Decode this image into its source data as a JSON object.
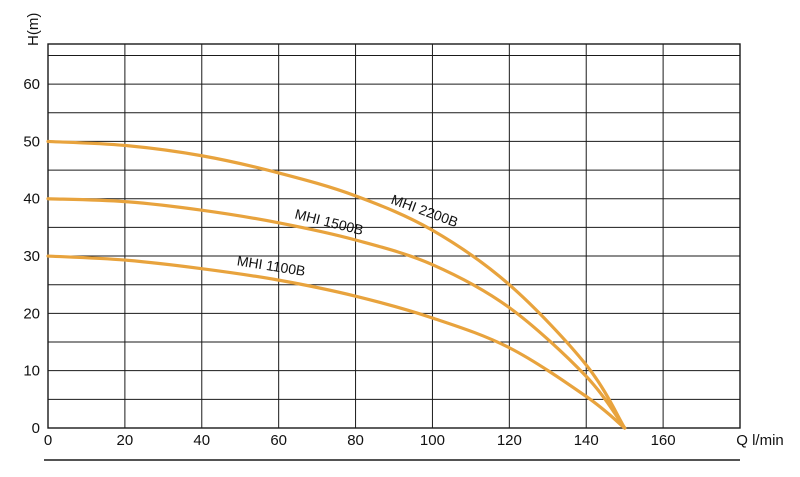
{
  "chart_data": {
    "type": "line",
    "title": "",
    "xlabel": "Q l/min",
    "ylabel": "H(m)",
    "xlim": [
      0,
      180
    ],
    "ylim": [
      0,
      67
    ],
    "x_ticks": [
      "0",
      "20",
      "40",
      "60",
      "80",
      "100",
      "120",
      "140",
      "160"
    ],
    "y_ticks": [
      "0",
      "10",
      "20",
      "30",
      "40",
      "50",
      "60"
    ],
    "grid": true,
    "line_color": "#E8A33D",
    "series": [
      {
        "name": "MHI 2200B",
        "points": [
          [
            0,
            50
          ],
          [
            20,
            49.3
          ],
          [
            40,
            47.5
          ],
          [
            60,
            44.5
          ],
          [
            80,
            40.5
          ],
          [
            100,
            34.5
          ],
          [
            120,
            25
          ],
          [
            140,
            11
          ],
          [
            150,
            0
          ]
        ]
      },
      {
        "name": "MHI 1500B",
        "points": [
          [
            0,
            40
          ],
          [
            20,
            39.5
          ],
          [
            40,
            38
          ],
          [
            60,
            35.8
          ],
          [
            80,
            32.8
          ],
          [
            100,
            28.5
          ],
          [
            120,
            21
          ],
          [
            140,
            9
          ],
          [
            150,
            0
          ]
        ]
      },
      {
        "name": "MHI 1100B",
        "points": [
          [
            0,
            30
          ],
          [
            20,
            29.3
          ],
          [
            40,
            27.8
          ],
          [
            60,
            25.8
          ],
          [
            80,
            23
          ],
          [
            100,
            19.2
          ],
          [
            120,
            14
          ],
          [
            140,
            5.5
          ],
          [
            150,
            0
          ]
        ]
      }
    ]
  }
}
